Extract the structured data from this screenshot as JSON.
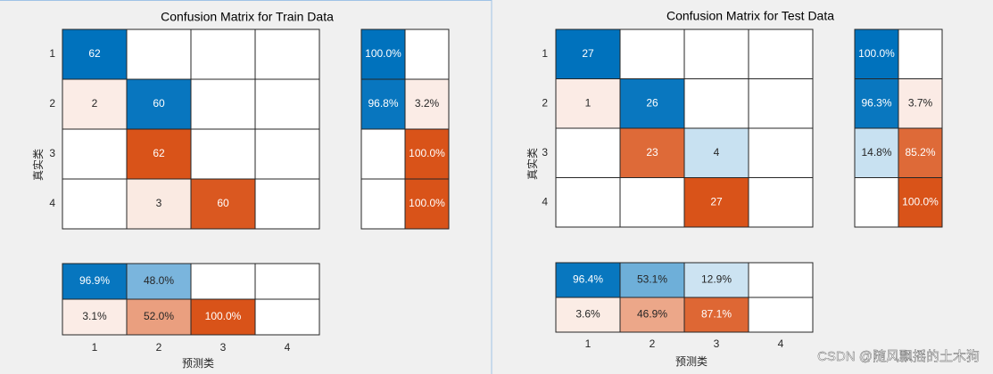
{
  "chart_data": [
    {
      "type": "confusion",
      "title": "Confusion Matrix for Train Data",
      "xlabel": "预测类",
      "ylabel": "真实类",
      "categories": [
        "1",
        "2",
        "3",
        "4"
      ],
      "matrix": [
        [
          62,
          null,
          null,
          null
        ],
        [
          2,
          60,
          null,
          null
        ],
        [
          null,
          62,
          null,
          null
        ],
        [
          null,
          3,
          60,
          null
        ]
      ],
      "row_summary": {
        "values": [
          [
            100,
            null
          ],
          [
            96.8,
            3.2
          ],
          [
            null,
            100
          ],
          [
            null,
            100
          ]
        ],
        "value_labels": [
          [
            "100.0%",
            null
          ],
          [
            "96.8%",
            "3.2%"
          ],
          [
            null,
            "100.0%"
          ],
          [
            null,
            "100.0%"
          ]
        ]
      },
      "column_summary": {
        "values": [
          [
            96.9,
            48,
            null,
            null
          ],
          [
            3.1,
            52,
            100,
            null
          ]
        ],
        "value_labels": [
          [
            "96.9%",
            "48.0%",
            null,
            null
          ],
          [
            "3.1%",
            "52.0%",
            "100.0%",
            null
          ]
        ]
      },
      "colors": {
        "correct": "#0072bd",
        "incorrect": "#d95319"
      }
    },
    {
      "type": "confusion",
      "title": "Confusion Matrix for Test Data",
      "xlabel": "预测类",
      "ylabel": "真实类",
      "categories": [
        "1",
        "2",
        "3",
        "4"
      ],
      "matrix": [
        [
          27,
          null,
          null,
          null
        ],
        [
          1,
          26,
          null,
          null
        ],
        [
          null,
          23,
          4,
          null
        ],
        [
          null,
          null,
          27,
          null
        ]
      ],
      "row_summary": {
        "values": [
          [
            100,
            null
          ],
          [
            96.3,
            3.7
          ],
          [
            14.8,
            85.2
          ],
          [
            null,
            100
          ]
        ],
        "value_labels": [
          [
            "100.0%",
            null
          ],
          [
            "96.3%",
            "3.7%"
          ],
          [
            "14.8%",
            "85.2%"
          ],
          [
            null,
            "100.0%"
          ]
        ]
      },
      "column_summary": {
        "values": [
          [
            96.4,
            53.1,
            12.9,
            null
          ],
          [
            3.6,
            46.9,
            87.1,
            null
          ]
        ],
        "value_labels": [
          [
            "96.4%",
            "53.1%",
            "12.9%",
            null
          ],
          [
            "3.6%",
            "46.9%",
            "87.1%",
            null
          ]
        ]
      },
      "colors": {
        "correct": "#0072bd",
        "incorrect": "#d95319"
      }
    }
  ],
  "watermark": "CSDN @随风飘摇的土木狗"
}
